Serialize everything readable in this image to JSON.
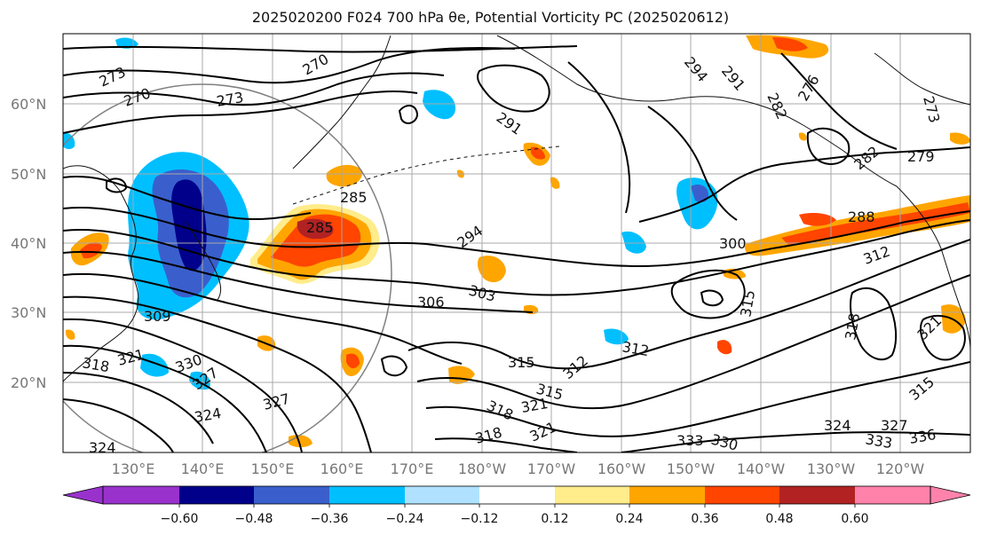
{
  "title": "2025020200 F024 700 hPa θe, Potential Vorticity PC (2025020612)",
  "map": {
    "lat_labels": [
      "60°N",
      "50°N",
      "40°N",
      "30°N",
      "20°N"
    ],
    "lon_labels": [
      "130°E",
      "140°E",
      "150°E",
      "160°E",
      "170°E",
      "180°W",
      "170°W",
      "160°W",
      "150°W",
      "140°W",
      "130°W",
      "120°W"
    ],
    "contour_labels": [
      "273",
      "270",
      "273",
      "270",
      "285",
      "285",
      "294",
      "291",
      "294",
      "291",
      "282",
      "276",
      "273",
      "279",
      "282",
      "288",
      "300",
      "312",
      "306",
      "303",
      "315",
      "318",
      "321",
      "312",
      "315",
      "312",
      "315",
      "318",
      "321",
      "327",
      "330",
      "324",
      "327",
      "333",
      "330",
      "333",
      "336",
      "324",
      "318",
      "321",
      "318",
      "309",
      "324",
      "327",
      "321",
      "315"
    ]
  },
  "colorbar": {
    "tick_labels": [
      "−0.60",
      "−0.48",
      "−0.36",
      "−0.24",
      "−0.12",
      "0.12",
      "0.24",
      "0.36",
      "0.48",
      "0.60"
    ],
    "colors": [
      "#9932cc",
      "#00008b",
      "#3a5fcd",
      "#00bfff",
      "#b0e2ff",
      "#ffffff",
      "#ffec8b",
      "#ffa500",
      "#ff4500",
      "#b22222",
      "#ff82ab"
    ]
  },
  "palette": {
    "neg_dark": "#00008b",
    "neg_mid": "#3a5fcd",
    "neg_light": "#00bfff",
    "neg_pale": "#b0e2ff",
    "pos_pale": "#ffec8b",
    "pos_mid": "#ffa500",
    "pos_strong": "#ff4500",
    "pos_dark": "#b22222"
  }
}
